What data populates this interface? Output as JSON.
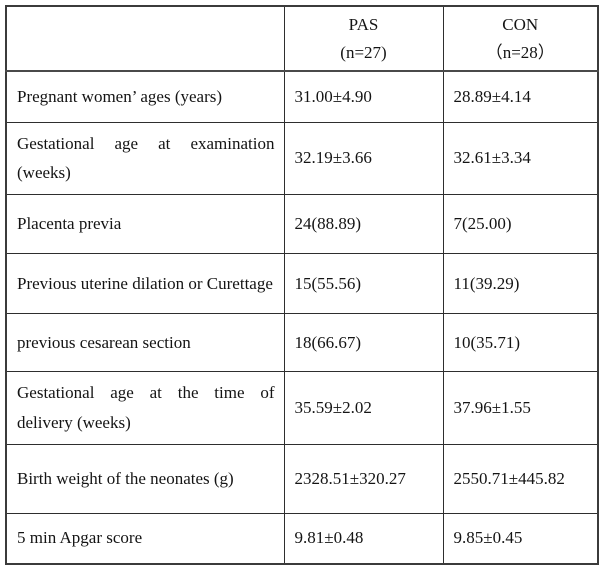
{
  "table": {
    "columns": [
      {
        "label": ""
      },
      {
        "label": "PAS",
        "sublabel": "(n=27)"
      },
      {
        "label": "CON",
        "sublabel": "（n=28）"
      }
    ],
    "rows": [
      {
        "label": "Pregnant women’ ages (years)",
        "pas": "31.00±4.90",
        "con": "28.89±4.14"
      },
      {
        "label": "Gestational age at examination (weeks)",
        "pas": "32.19±3.66",
        "con": "32.61±3.34"
      },
      {
        "label": "Placenta previa",
        "pas": "24(88.89)",
        "con": "7(25.00)"
      },
      {
        "label": "Previous uterine dilation or Curettage",
        "pas": "15(55.56)",
        "con": "11(39.29)"
      },
      {
        "label": "previous cesarean section",
        "pas": "18(66.67)",
        "con": "10(35.71)"
      },
      {
        "label": "Gestational age at the time of delivery (weeks)",
        "pas": "35.59±2.02",
        "con": "37.96±1.55"
      },
      {
        "label": "Birth weight of the neonates (g)",
        "pas": "2328.51±320.27",
        "con": "2550.71±445.82"
      },
      {
        "label": "5 min Apgar score",
        "pas": "9.81±0.48",
        "con": "9.85±0.45"
      }
    ],
    "border_color": "#3b3b3b",
    "text_color": "#141414"
  }
}
